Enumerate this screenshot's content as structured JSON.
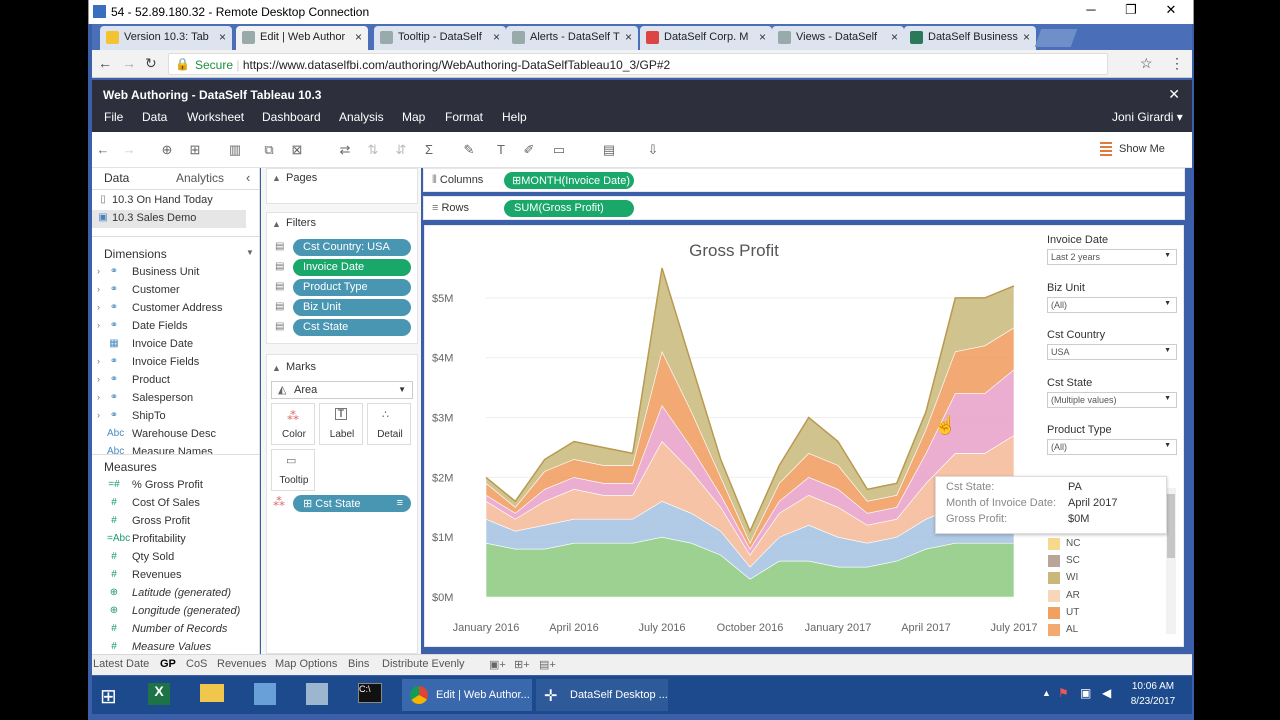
{
  "rdp": {
    "title": "54 - 52.89.180.32 - Remote Desktop Connection",
    "minimize": "─",
    "restore": "❐",
    "close": "✕"
  },
  "browser": {
    "tabs": [
      {
        "label": "Version 10.3: Tab",
        "color": "#f3c332",
        "active": false
      },
      {
        "label": "Edit | Web Author",
        "color": "#9aa",
        "active": true
      },
      {
        "label": "Tooltip - DataSelf",
        "color": "#9aa",
        "active": false
      },
      {
        "label": "Alerts - DataSelf T",
        "color": "#9aa",
        "active": false
      },
      {
        "label": "DataSelf Corp. M",
        "color": "#d44",
        "active": false
      },
      {
        "label": "Views - DataSelf",
        "color": "#9aa",
        "active": false
      },
      {
        "label": "DataSelf Business",
        "color": "#2a7a5a",
        "active": false
      }
    ],
    "tab_close": "×",
    "secure_label": "Secure",
    "url": "https://www.dataselfbi.com/authoring/WebAuthoring-DataSelfTableau10_3/GP#2"
  },
  "app": {
    "title": "Web Authoring - DataSelf Tableau 10.3",
    "close": "✕",
    "menus": [
      "File",
      "Data",
      "Worksheet",
      "Dashboard",
      "Analysis",
      "Map",
      "Format",
      "Help"
    ],
    "user": "Joni Girardi",
    "show_me": "Show Me"
  },
  "data_pane": {
    "tabs": {
      "data": "Data",
      "analytics": "Analytics",
      "collapse": "‹"
    },
    "sources": [
      "10.3 On Hand Today",
      "10.3 Sales Demo"
    ],
    "dimensions_label": "Dimensions",
    "dimensions": [
      {
        "label": "Business Unit",
        "icon": "⚭",
        "exp": "›"
      },
      {
        "label": "Customer",
        "icon": "⚭",
        "exp": "›"
      },
      {
        "label": "Customer Address",
        "icon": "⚭",
        "exp": "›"
      },
      {
        "label": "Date Fields",
        "icon": "⚭",
        "exp": "›"
      },
      {
        "label": "Invoice Date",
        "icon": "▦",
        "exp": ""
      },
      {
        "label": "Invoice Fields",
        "icon": "⚭",
        "exp": "›"
      },
      {
        "label": "Product",
        "icon": "⚭",
        "exp": "›"
      },
      {
        "label": "Salesperson",
        "icon": "⚭",
        "exp": "›"
      },
      {
        "label": "ShipTo",
        "icon": "⚭",
        "exp": "›"
      },
      {
        "label": "Warehouse Desc",
        "icon": "Abc",
        "exp": ""
      },
      {
        "label": "Measure Names",
        "icon": "Abc",
        "exp": ""
      }
    ],
    "measures_label": "Measures",
    "measures": [
      {
        "label": "% Gross Profit",
        "icon": "=#",
        "italic": false
      },
      {
        "label": "Cost Of Sales",
        "icon": "#",
        "italic": false
      },
      {
        "label": "Gross Profit",
        "icon": "#",
        "italic": false
      },
      {
        "label": "Profitability",
        "icon": "=Abc",
        "italic": false
      },
      {
        "label": "Qty Sold",
        "icon": "#",
        "italic": false
      },
      {
        "label": "Revenues",
        "icon": "#",
        "italic": false
      },
      {
        "label": "Latitude (generated)",
        "icon": "⊕",
        "italic": true
      },
      {
        "label": "Longitude (generated)",
        "icon": "⊕",
        "italic": true
      },
      {
        "label": "Number of Records",
        "icon": "#",
        "italic": true
      },
      {
        "label": "Measure Values",
        "icon": "#",
        "italic": true
      }
    ]
  },
  "cards": {
    "pages": "Pages",
    "filters": "Filters",
    "filter_pills": [
      {
        "label": "Cst Country: USA",
        "color": "blue"
      },
      {
        "label": "Invoice Date",
        "color": "green"
      },
      {
        "label": "Product Type",
        "color": "blue"
      },
      {
        "label": "Biz Unit",
        "color": "blue"
      },
      {
        "label": "Cst State",
        "color": "blue"
      }
    ],
    "marks": "Marks",
    "mark_type": "Area",
    "mark_buttons": {
      "color": "Color",
      "label": "Label",
      "detail": "Detail",
      "tooltip": "Tooltip"
    },
    "color_pill": "Cst State"
  },
  "shelves": {
    "columns_label": "Columns",
    "columns_pill": "MONTH(Invoice Date)",
    "rows_label": "Rows",
    "rows_pill": "SUM(Gross Profit)"
  },
  "chart_data": {
    "type": "area",
    "title": "Gross Profit",
    "xlabel": "",
    "ylabel": "",
    "x_ticks": [
      "January 2016",
      "April 2016",
      "July 2016",
      "October 2016",
      "January 2017",
      "April 2017",
      "July 2017"
    ],
    "y_ticks": [
      "$0M",
      "$1M",
      "$2M",
      "$3M",
      "$4M",
      "$5M"
    ],
    "ylim": [
      0,
      5.5
    ],
    "x": [
      "2016-01",
      "2016-02",
      "2016-03",
      "2016-04",
      "2016-05",
      "2016-06",
      "2016-07",
      "2016-08",
      "2016-09",
      "2016-10",
      "2016-11",
      "2016-12",
      "2017-01",
      "2017-02",
      "2017-03",
      "2017-04",
      "2017-05",
      "2017-06",
      "2017-07"
    ],
    "series": [
      {
        "color": "#8cc97e",
        "values": [
          0.9,
          0.8,
          0.8,
          0.9,
          0.9,
          0.9,
          1.0,
          0.9,
          0.7,
          0.3,
          0.6,
          0.6,
          0.5,
          0.5,
          0.6,
          0.8,
          0.9,
          0.9,
          0.9
        ]
      },
      {
        "color": "#a3c1e0",
        "values": [
          0.4,
          0.3,
          0.4,
          0.4,
          0.4,
          0.4,
          0.6,
          0.5,
          0.4,
          0.2,
          0.4,
          0.6,
          0.5,
          0.4,
          0.4,
          0.5,
          0.6,
          0.7,
          0.8
        ]
      },
      {
        "color": "#f4b896",
        "values": [
          0.3,
          0.2,
          0.4,
          0.5,
          0.4,
          0.4,
          1.0,
          0.7,
          0.4,
          0.2,
          0.4,
          0.5,
          0.5,
          0.3,
          0.3,
          0.6,
          0.9,
          0.8,
          1.0
        ]
      },
      {
        "color": "#e8a0c8",
        "values": [
          0.1,
          0.1,
          0.2,
          0.2,
          0.2,
          0.2,
          0.6,
          0.4,
          0.2,
          0.1,
          0.2,
          0.3,
          0.3,
          0.2,
          0.2,
          0.5,
          1.0,
          1.0,
          1.1
        ]
      },
      {
        "color": "#f09a5a",
        "values": [
          0.2,
          0.1,
          0.3,
          0.3,
          0.3,
          0.3,
          0.9,
          0.6,
          0.3,
          0.1,
          0.3,
          0.4,
          0.4,
          0.2,
          0.2,
          0.4,
          0.7,
          0.8,
          0.7
        ]
      },
      {
        "color": "#c9b87a",
        "values": [
          0.1,
          0.1,
          0.2,
          0.3,
          0.3,
          0.2,
          1.4,
          0.8,
          0.3,
          0.2,
          0.3,
          0.6,
          0.4,
          0.2,
          0.2,
          0.3,
          0.9,
          0.8,
          0.7
        ]
      }
    ]
  },
  "quick_filters": [
    {
      "label": "Invoice Date",
      "value": "Last 2 years"
    },
    {
      "label": "Biz Unit",
      "value": "(All)"
    },
    {
      "label": "Cst Country",
      "value": "USA"
    },
    {
      "label": "Cst State",
      "value": "(Multiple values)"
    },
    {
      "label": "Product Type",
      "value": "(All)"
    }
  ],
  "legend": [
    {
      "label": "NC",
      "color": "#f6d98c"
    },
    {
      "label": "SC",
      "color": "#b9a59a"
    },
    {
      "label": "WI",
      "color": "#c9b87a"
    },
    {
      "label": "AR",
      "color": "#f8d7b8"
    },
    {
      "label": "UT",
      "color": "#f0a060"
    },
    {
      "label": "AL",
      "color": "#f3a970"
    }
  ],
  "tooltip": {
    "k1": "Cst State:",
    "v1": "PA",
    "k2": "Month of Invoice Date:",
    "v2": "April 2017",
    "k3": "Gross Profit:",
    "v3": "$0M"
  },
  "sheet_tabs": [
    "Latest Date",
    "GP",
    "CoS",
    "Revenues",
    "Map Options",
    "Bins",
    "Distribute Evenly"
  ],
  "active_sheet": "GP",
  "taskbar": {
    "chrome_label": "Edit | Web Author...",
    "desktop_label": "DataSelf Desktop ...",
    "time": "10:06 AM",
    "date": "8/23/2017"
  }
}
